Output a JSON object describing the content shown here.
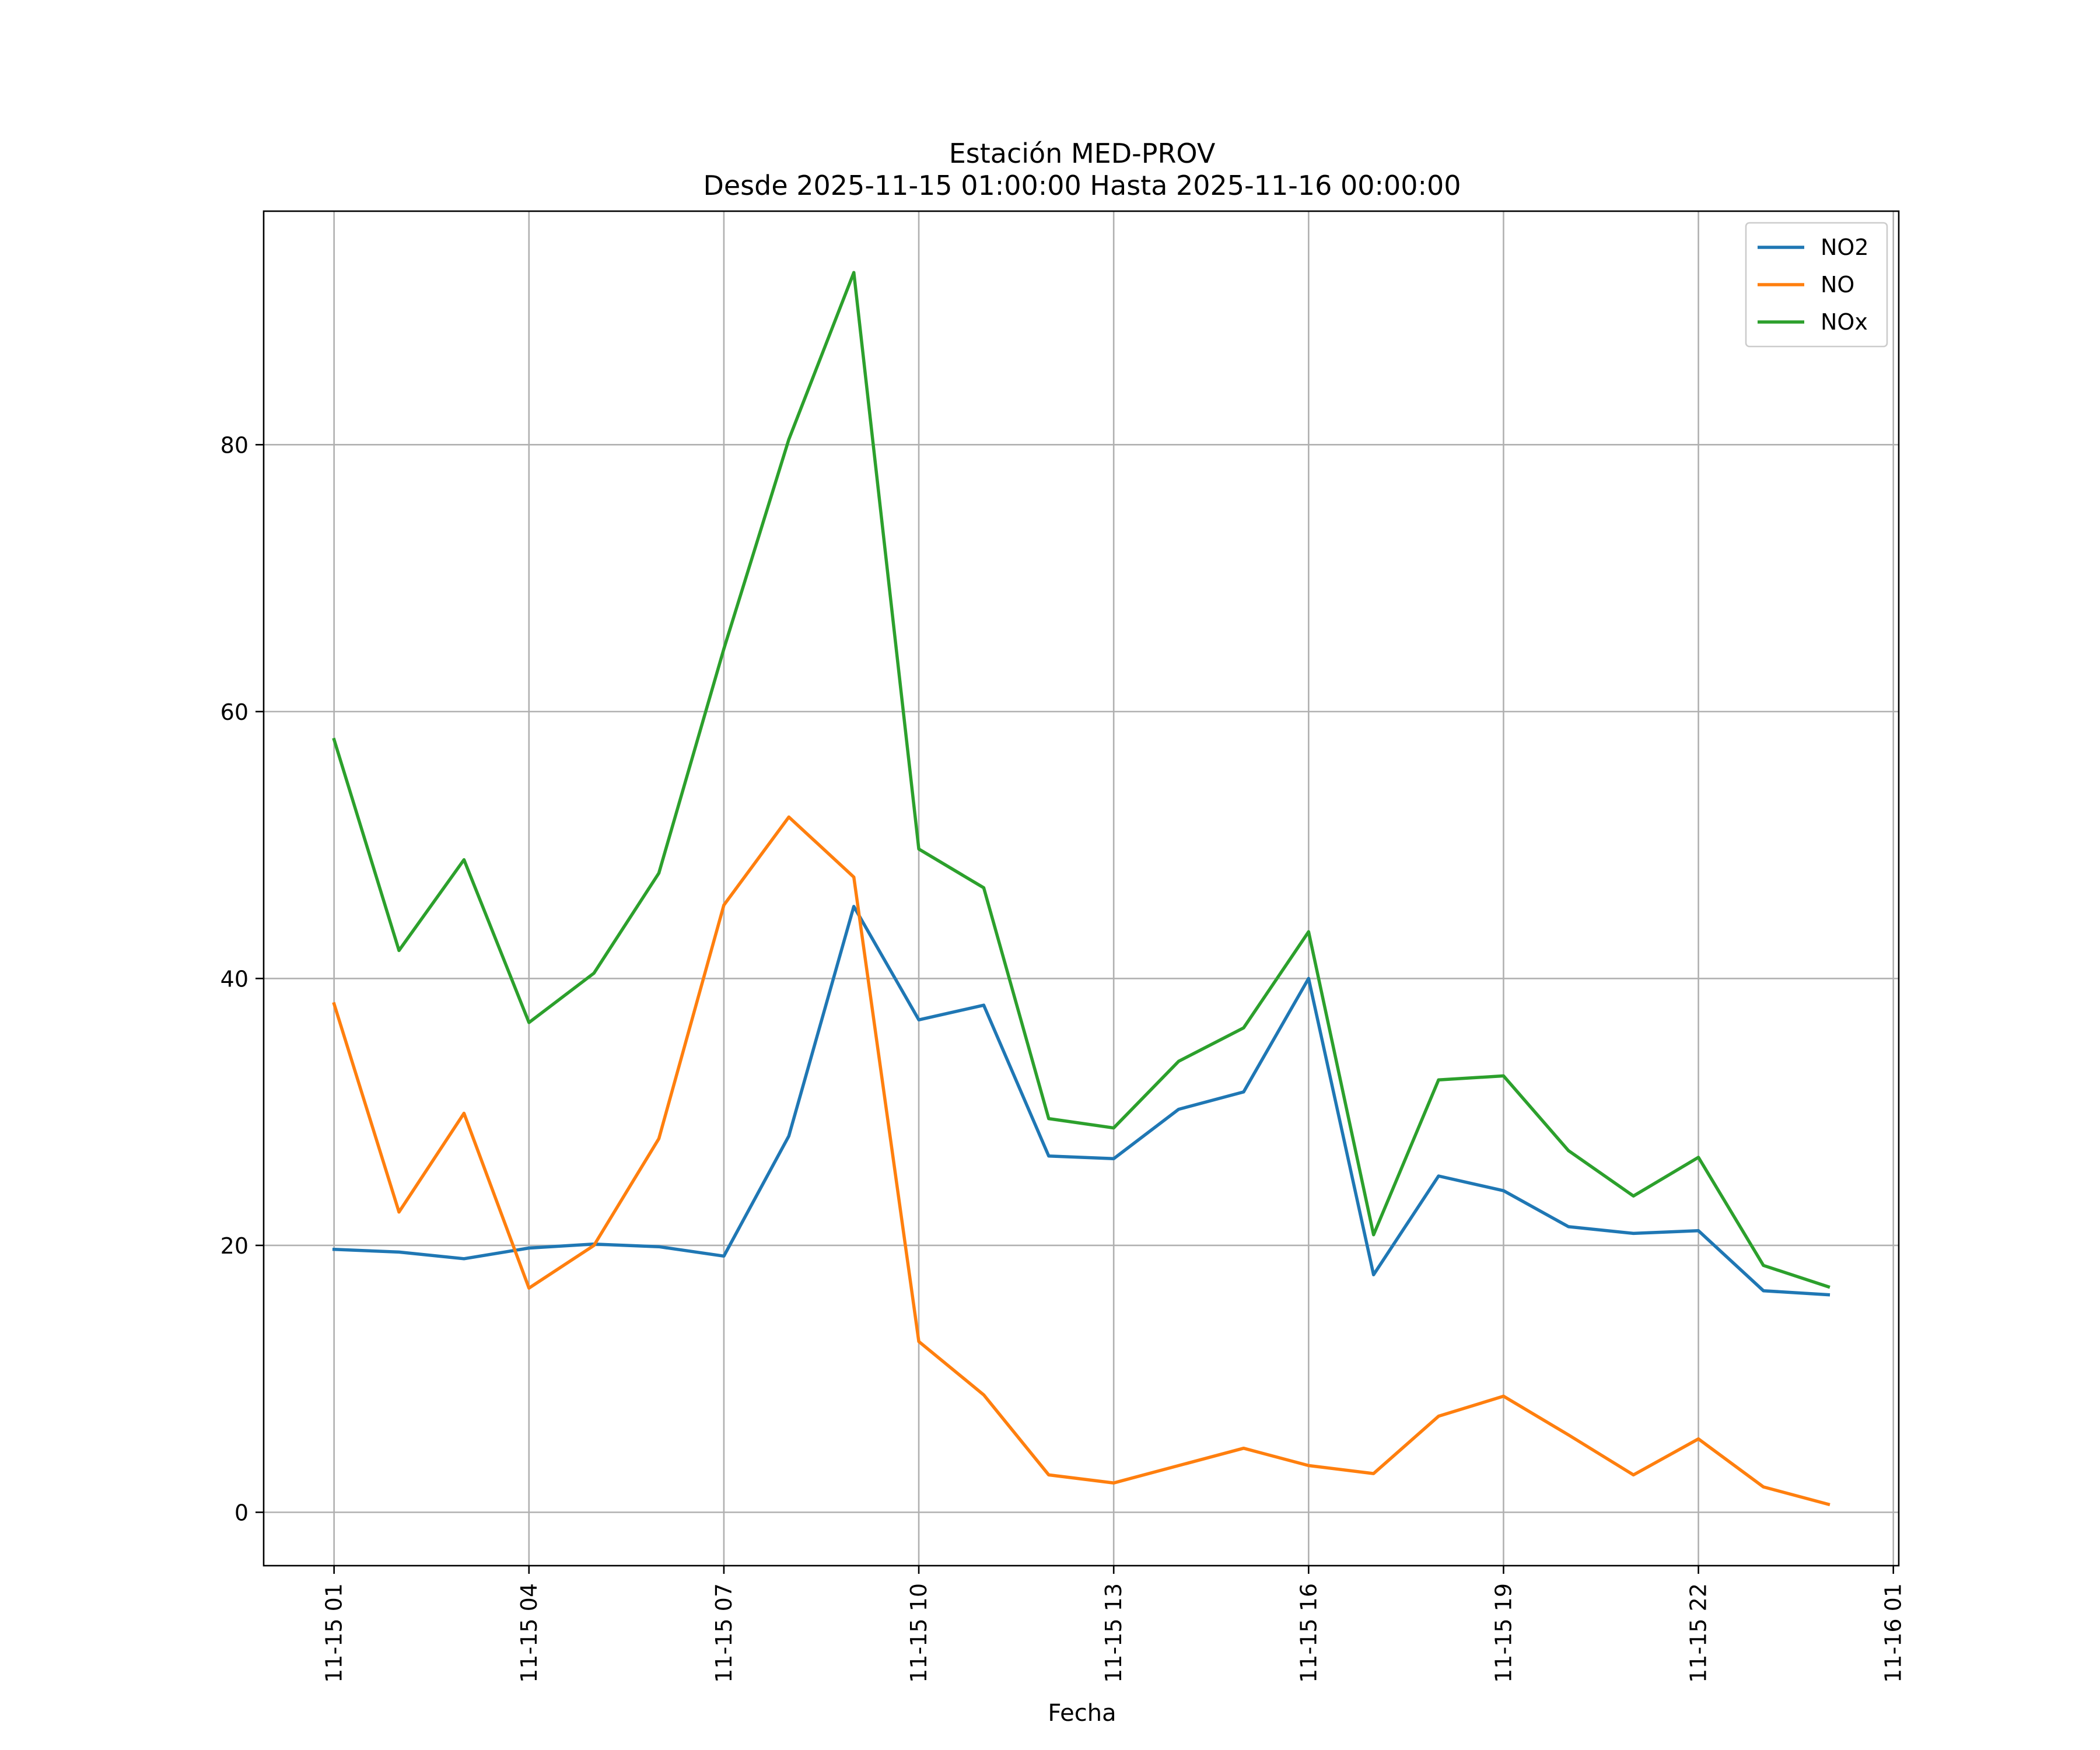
{
  "chart_data": {
    "type": "line",
    "title": "Estación MED-PROV",
    "subtitle": "Desde 2025-11-15 01:00:00 Hasta 2025-11-16 00:00:00",
    "xlabel": "Fecha",
    "ylabel": "",
    "x": [
      "2025-11-15 01:00",
      "2025-11-15 02:00",
      "2025-11-15 03:00",
      "2025-11-15 04:00",
      "2025-11-15 05:00",
      "2025-11-15 06:00",
      "2025-11-15 07:00",
      "2025-11-15 08:00",
      "2025-11-15 09:00",
      "2025-11-15 10:00",
      "2025-11-15 11:00",
      "2025-11-15 12:00",
      "2025-11-15 13:00",
      "2025-11-15 14:00",
      "2025-11-15 15:00",
      "2025-11-15 16:00",
      "2025-11-15 17:00",
      "2025-11-15 18:00",
      "2025-11-15 19:00",
      "2025-11-15 20:00",
      "2025-11-15 21:00",
      "2025-11-15 22:00",
      "2025-11-15 23:00",
      "2025-11-16 00:00"
    ],
    "xlim": [
      "2025-11-14 23:55",
      "2025-11-16 01:05"
    ],
    "x_ticks": [
      "11-15 01",
      "11-15 04",
      "11-15 07",
      "11-15 10",
      "11-15 13",
      "11-15 16",
      "11-15 19",
      "11-15 22",
      "11-16 01"
    ],
    "ylim": [
      -4,
      97.5
    ],
    "y_ticks": [
      0,
      20,
      40,
      60,
      80
    ],
    "grid": true,
    "legend_position": "top-right",
    "series": [
      {
        "name": "NO2",
        "color": "#1f77b4",
        "values": [
          19.7,
          19.5,
          19.0,
          19.8,
          20.1,
          19.9,
          19.2,
          28.2,
          45.4,
          36.9,
          38.0,
          26.7,
          26.5,
          30.2,
          31.5,
          40.0,
          17.8,
          25.2,
          24.1,
          21.4,
          20.9,
          21.1,
          16.6,
          16.3
        ]
      },
      {
        "name": "NO",
        "color": "#ff7f0e",
        "values": [
          38.1,
          22.5,
          29.9,
          16.8,
          20.0,
          28.0,
          45.5,
          52.1,
          47.6,
          12.8,
          8.8,
          2.8,
          2.2,
          3.5,
          4.8,
          3.5,
          2.9,
          7.2,
          8.7,
          5.8,
          2.8,
          5.5,
          1.9,
          0.6
        ]
      },
      {
        "name": "NOx",
        "color": "#2ca02c",
        "values": [
          57.9,
          42.1,
          48.9,
          36.7,
          40.4,
          47.9,
          64.7,
          80.4,
          92.9,
          49.7,
          46.8,
          29.5,
          28.8,
          33.8,
          36.3,
          43.5,
          20.8,
          32.4,
          32.7,
          27.1,
          23.7,
          26.6,
          18.5,
          16.9
        ]
      }
    ]
  }
}
